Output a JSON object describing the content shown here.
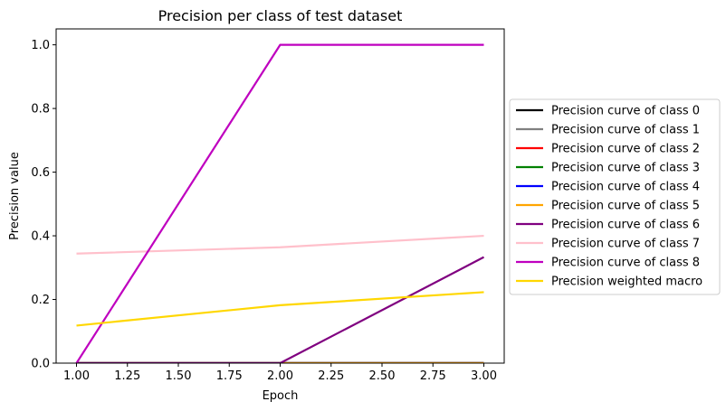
{
  "chart_data": {
    "type": "line",
    "title": "Precision per class of test dataset",
    "xlabel": "Epoch",
    "ylabel": "Precision value",
    "xlim": [
      0.9,
      3.1
    ],
    "ylim": [
      0.0,
      1.05
    ],
    "xticks": [
      1.0,
      1.25,
      1.5,
      1.75,
      2.0,
      2.25,
      2.5,
      2.75,
      3.0
    ],
    "xtick_labels": [
      "1.00",
      "1.25",
      "1.50",
      "1.75",
      "2.00",
      "2.25",
      "2.50",
      "2.75",
      "3.00"
    ],
    "yticks": [
      0.0,
      0.2,
      0.4,
      0.6,
      0.8,
      1.0
    ],
    "ytick_labels": [
      "0.0",
      "0.2",
      "0.4",
      "0.6",
      "0.8",
      "1.0"
    ],
    "grid": false,
    "legend_position": "outside-right",
    "x": [
      1,
      2,
      3
    ],
    "series": [
      {
        "name": "Precision curve of class 0",
        "color": "#000000",
        "values": [
          0,
          0,
          0
        ]
      },
      {
        "name": "Precision curve of class 1",
        "color": "#808080",
        "values": [
          0,
          0,
          0
        ]
      },
      {
        "name": "Precision curve of class 2",
        "color": "#ff0000",
        "values": [
          0,
          0,
          0
        ]
      },
      {
        "name": "Precision curve of class 3",
        "color": "#008000",
        "values": [
          0,
          0,
          0
        ]
      },
      {
        "name": "Precision curve of class 4",
        "color": "#0000ff",
        "values": [
          0,
          0,
          0
        ]
      },
      {
        "name": "Precision curve of class 5",
        "color": "#ffa500",
        "values": [
          0,
          0,
          0
        ]
      },
      {
        "name": "Precision curve of class 6",
        "color": "#800080",
        "values": [
          0,
          0,
          0.333
        ]
      },
      {
        "name": "Precision curve of class 7",
        "color": "#ffc0cb",
        "values": [
          0.344,
          0.364,
          0.4
        ]
      },
      {
        "name": "Precision curve of class 8",
        "color": "#bf00bf",
        "values": [
          0,
          1.0,
          1.0
        ]
      },
      {
        "name": "Precision weighted macro",
        "color": "#ffd700",
        "values": [
          0.118,
          0.182,
          0.223
        ]
      }
    ]
  }
}
